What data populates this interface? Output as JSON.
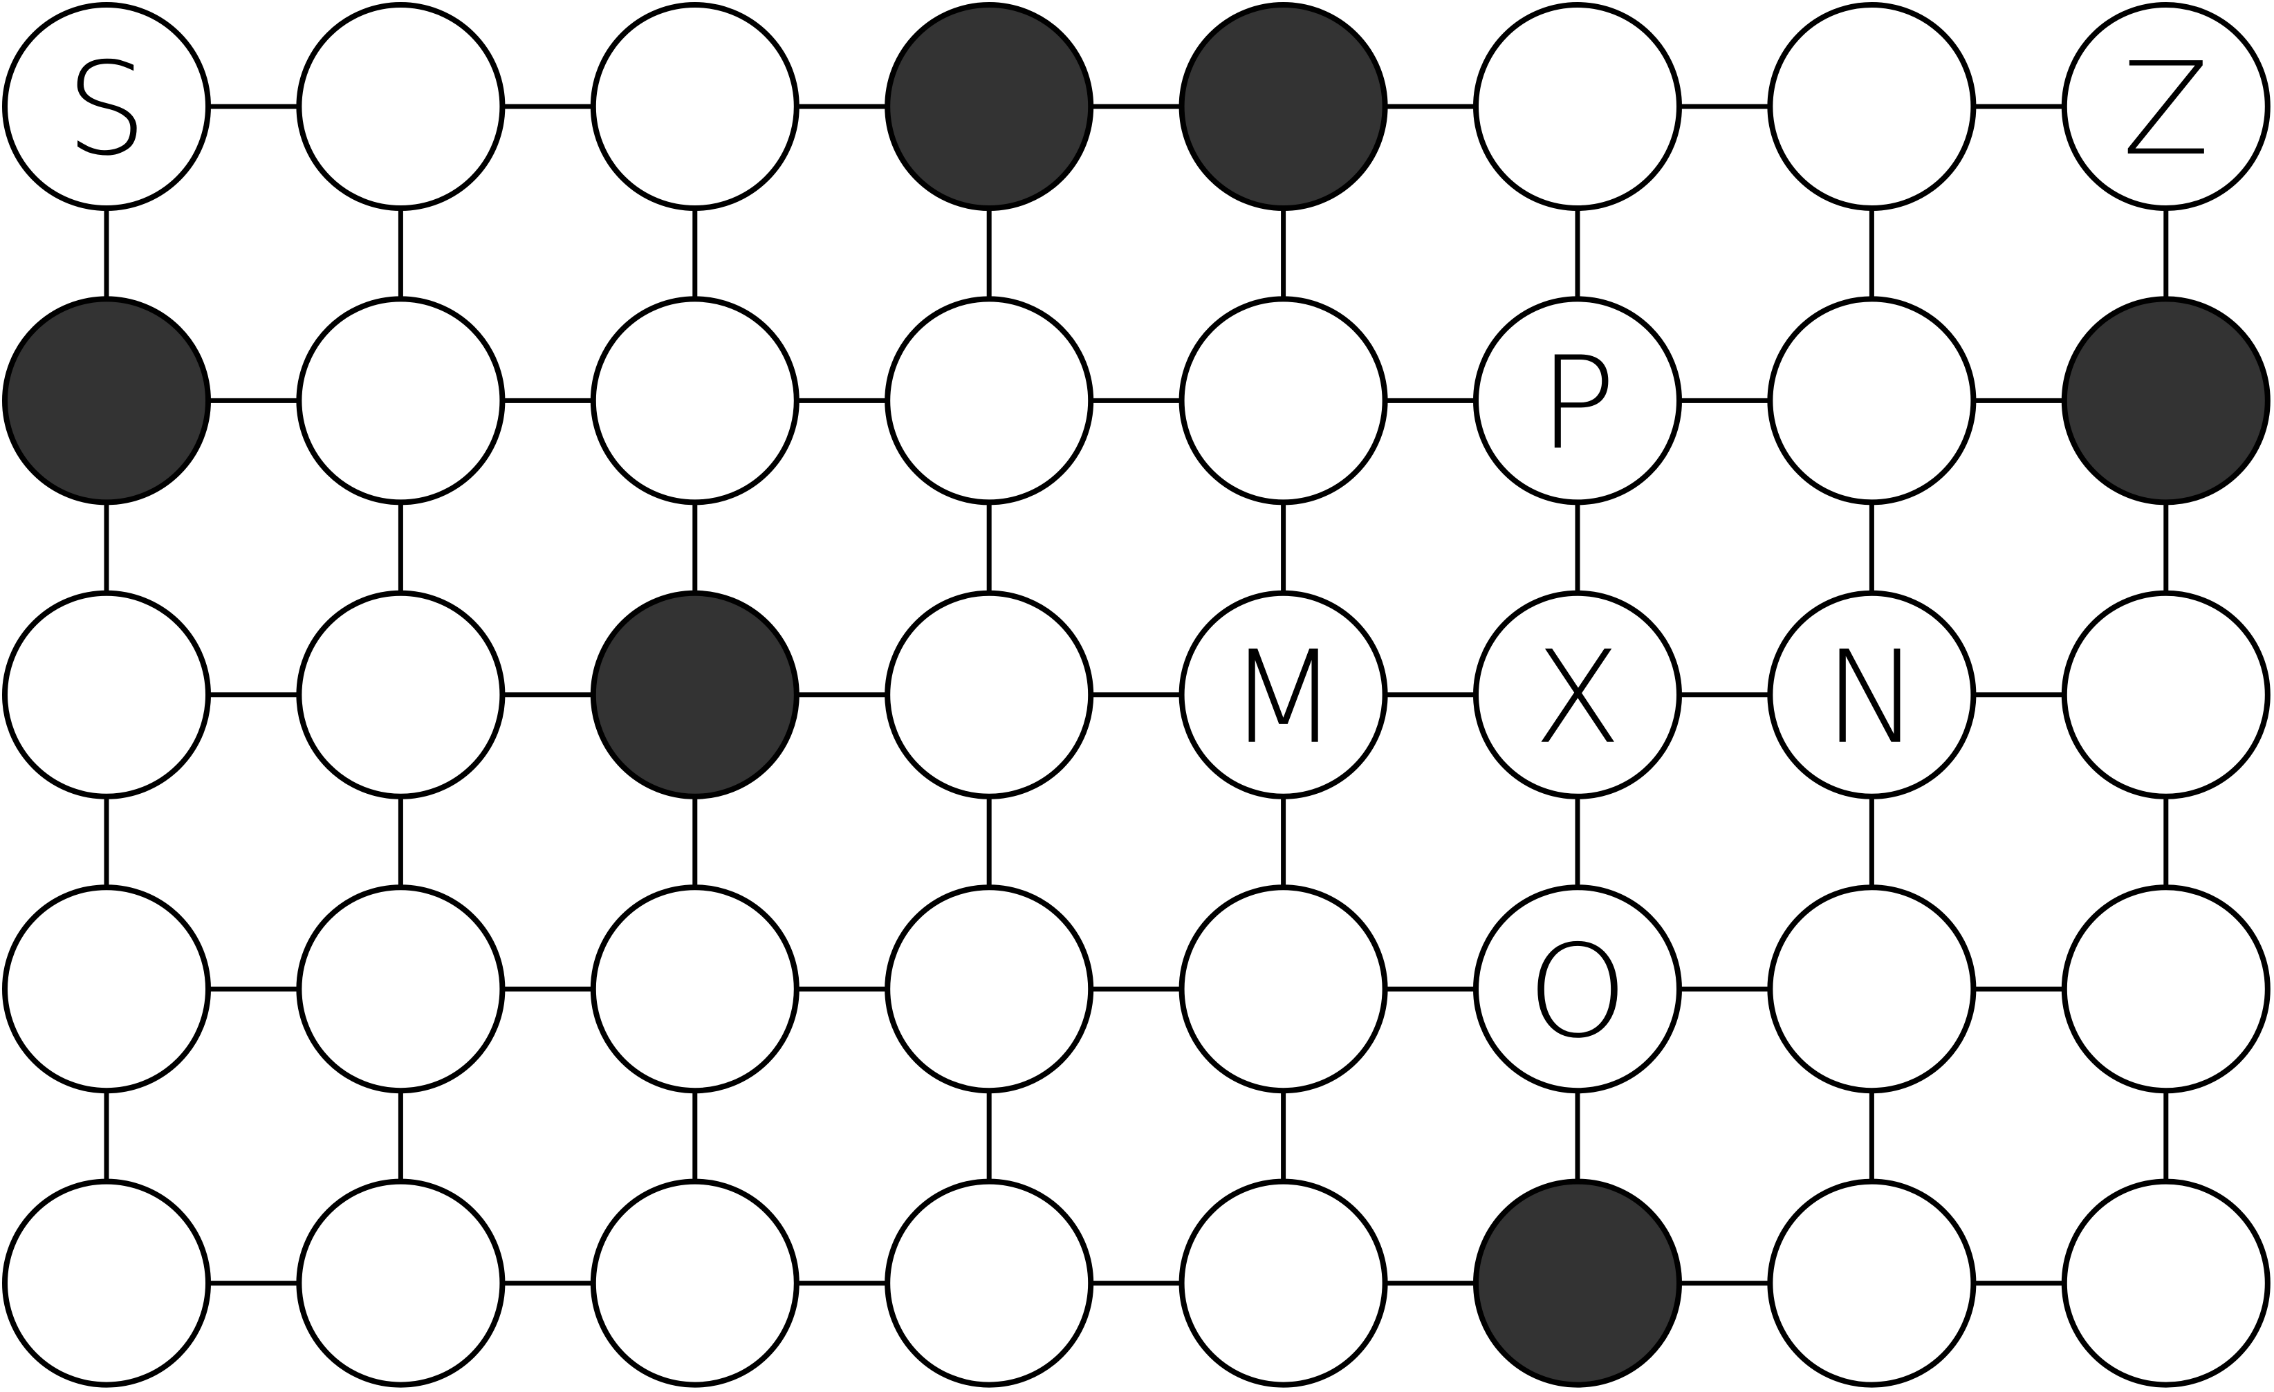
{
  "grid": {
    "rows": 5,
    "cols": 8,
    "colors": {
      "blocked_fill": "#333333",
      "open_fill": "#ffffff",
      "stroke": "#000000"
    },
    "blocked": [
      [
        0,
        3
      ],
      [
        0,
        4
      ],
      [
        1,
        0
      ],
      [
        1,
        7
      ],
      [
        2,
        2
      ],
      [
        4,
        5
      ]
    ],
    "labels": [
      {
        "row": 0,
        "col": 0,
        "text": "S"
      },
      {
        "row": 0,
        "col": 7,
        "text": "Z"
      },
      {
        "row": 1,
        "col": 5,
        "text": "P"
      },
      {
        "row": 2,
        "col": 4,
        "text": "M"
      },
      {
        "row": 2,
        "col": 5,
        "text": "X"
      },
      {
        "row": 2,
        "col": 6,
        "text": "N"
      },
      {
        "row": 3,
        "col": 5,
        "text": "O"
      }
    ]
  }
}
